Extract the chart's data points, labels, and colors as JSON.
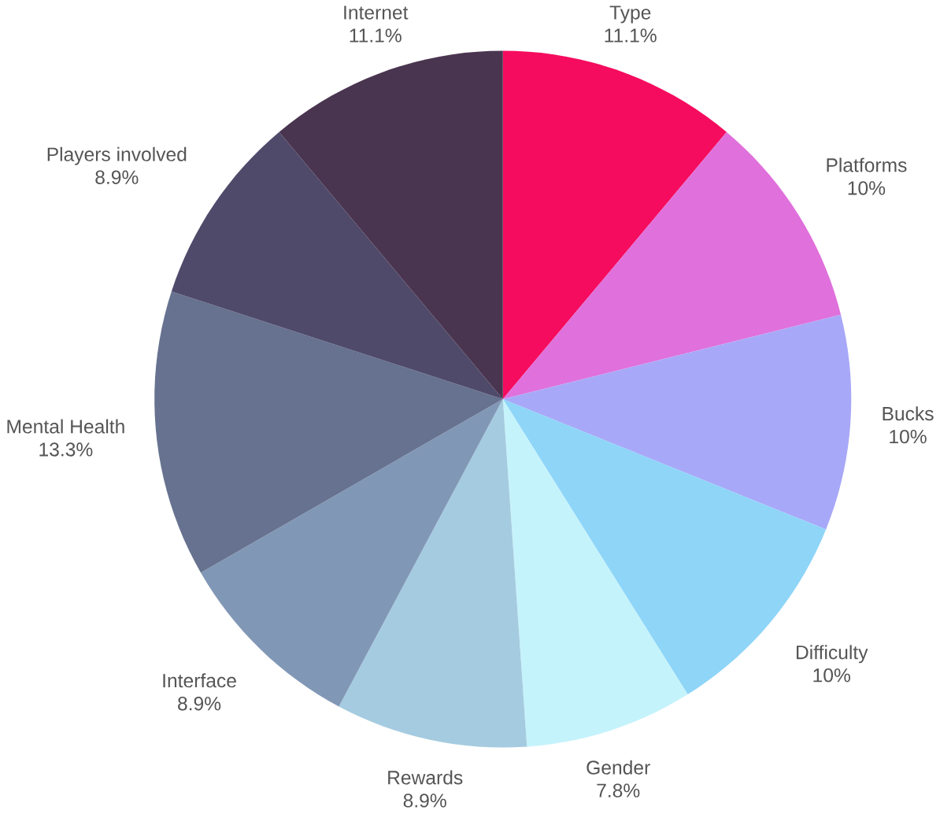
{
  "chart_data": {
    "type": "pie",
    "categories": [
      "Type",
      "Platforms",
      "Bucks",
      "Difficulty",
      "Gender",
      "Rewards",
      "Interface",
      "Mental Health",
      "Players involved",
      "Internet"
    ],
    "values": [
      11.1,
      10,
      10,
      10,
      7.8,
      8.9,
      8.9,
      13.3,
      8.9,
      11.1
    ],
    "value_labels": [
      "11.1%",
      "10%",
      "10%",
      "10%",
      "7.8%",
      "8.9%",
      "8.9%",
      "13.3%",
      "8.9%",
      "11.1%"
    ],
    "colors": [
      "#f50c5e",
      "#e070dc",
      "#a8a8f8",
      "#8ed5f8",
      "#c5f3fb",
      "#a5cbe0",
      "#8197b6",
      "#66728f",
      "#4f4a6a",
      "#4a3550"
    ]
  }
}
